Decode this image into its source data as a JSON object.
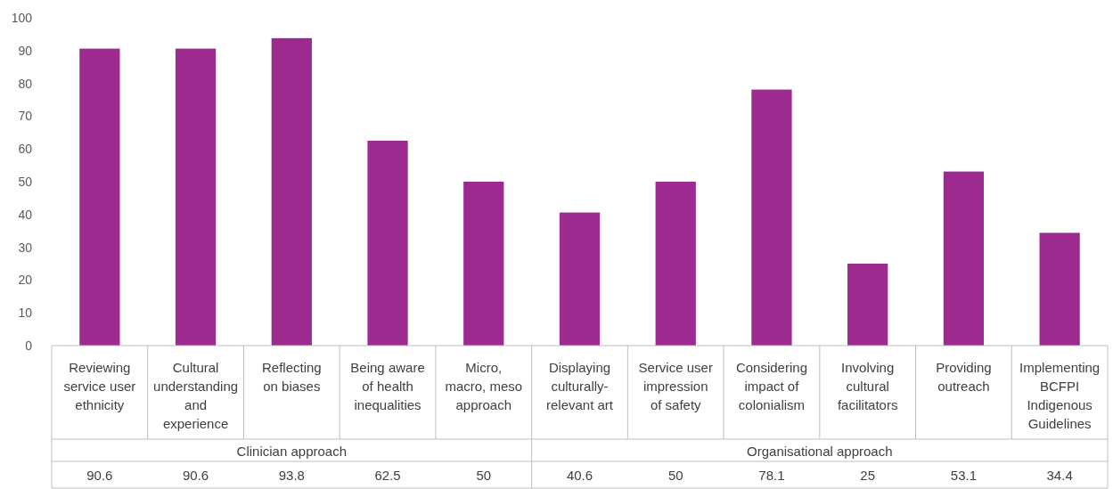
{
  "chart_data": {
    "type": "bar",
    "categories": [
      "Reviewing service user ethnicity",
      "Cultural understanding and experience",
      "Reflecting on biases",
      "Being aware of health inequalities",
      "Micro, macro, meso approach",
      "Displaying culturally-relevant art",
      "Service user impression of safety",
      "Considering impact of colonialism",
      "Involving cultural facilitators",
      "Providing outreach",
      "Implementing BCFPI Indigenous Guidelines"
    ],
    "values": [
      90.6,
      90.6,
      93.8,
      62.5,
      50,
      40.6,
      50,
      78.1,
      25,
      53.1,
      34.4
    ],
    "color": "#9c2a8f",
    "ylim": [
      0,
      100
    ],
    "yticks": [
      0,
      10,
      20,
      30,
      40,
      50,
      60,
      70,
      80,
      90,
      100
    ],
    "data_labels": true,
    "annotations": [
      "Clinician approach",
      "Organisational approach"
    ]
  }
}
